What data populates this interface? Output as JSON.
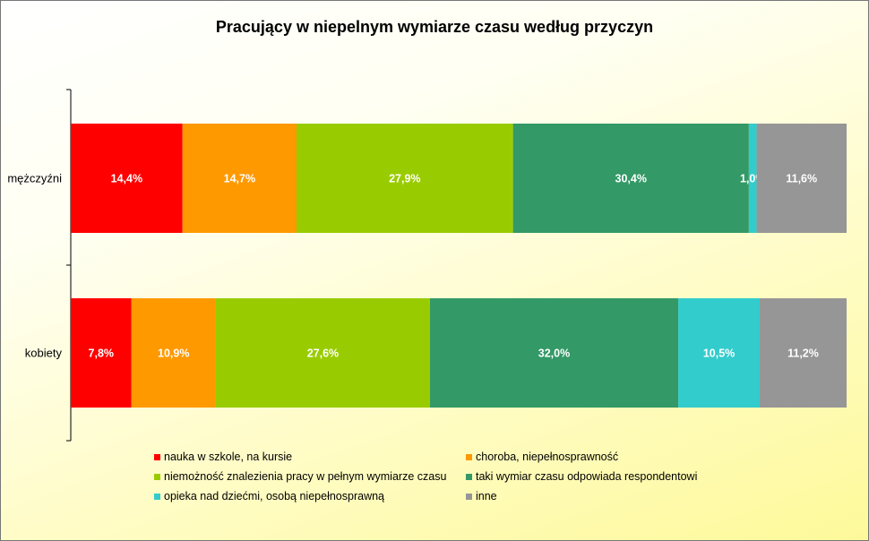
{
  "chart_data": {
    "type": "bar",
    "orientation": "horizontal",
    "stacked": "percent",
    "title": "Pracujący w niepelnym wymiarze czasu według przyczyn",
    "categories": [
      "mężczyźni",
      "kobiety"
    ],
    "series": [
      {
        "name": "nauka w szkole, na kursie",
        "color": "#ff0000",
        "values": [
          14.4,
          7.8
        ],
        "labels": [
          "14,4%",
          "7,8%"
        ]
      },
      {
        "name": "choroba, niepełnosprawność",
        "color": "#ff9900",
        "values": [
          14.7,
          10.9
        ],
        "labels": [
          "14,7%",
          "10,9%"
        ]
      },
      {
        "name": "niemożność znalezienia pracy w pełnym wymiarze czasu",
        "color": "#99cc00",
        "values": [
          27.9,
          27.6
        ],
        "labels": [
          "27,9%",
          "27,6%"
        ]
      },
      {
        "name": "taki wymiar czasu odpowiada respondentowi",
        "color": "#339966",
        "values": [
          30.4,
          32.0
        ],
        "labels": [
          "30,4%",
          "32,0%"
        ]
      },
      {
        "name": "opieka nad dziećmi, osobą niepełnosprawną",
        "color": "#33cccc",
        "values": [
          1.0,
          10.5
        ],
        "labels": [
          "1,0%",
          "10,5%"
        ]
      },
      {
        "name": "inne",
        "color": "#969696",
        "values": [
          11.6,
          11.2
        ],
        "labels": [
          "11,6%",
          "11,2%"
        ]
      }
    ],
    "xlim": [
      0,
      100
    ],
    "grid": false,
    "legend": "bottom"
  }
}
